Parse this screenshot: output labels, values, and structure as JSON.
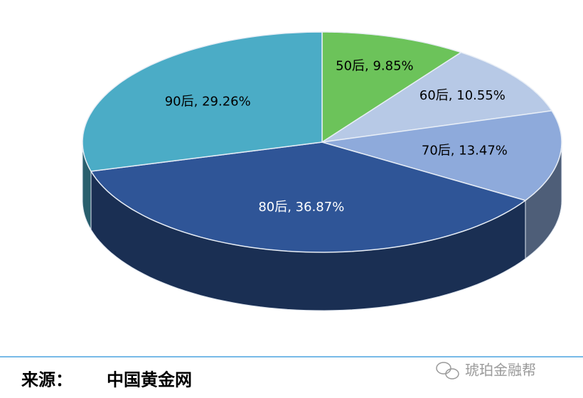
{
  "chart_data": {
    "type": "pie",
    "values": [
      9.85,
      10.55,
      13.47,
      36.87,
      29.26
    ],
    "value_labels": [
      "50后, 9.85%",
      "60后, 10.55%",
      "70后, 13.47%",
      "80后, 36.87%",
      "90后, 29.26%"
    ],
    "colors": [
      "#6cc35a",
      "#b7c9e6",
      "#8eaadb",
      "#2f5597",
      "#4bacc6"
    ],
    "label_colors": [
      "#000000",
      "#000000",
      "#000000",
      "#ffffff",
      "#000000"
    ],
    "start_angle": 0,
    "direction": "clockwise",
    "three_d": true
  },
  "footer": {
    "source_label": "来源：",
    "source": "中国黄金网",
    "watermark": "琥珀金融帮"
  }
}
